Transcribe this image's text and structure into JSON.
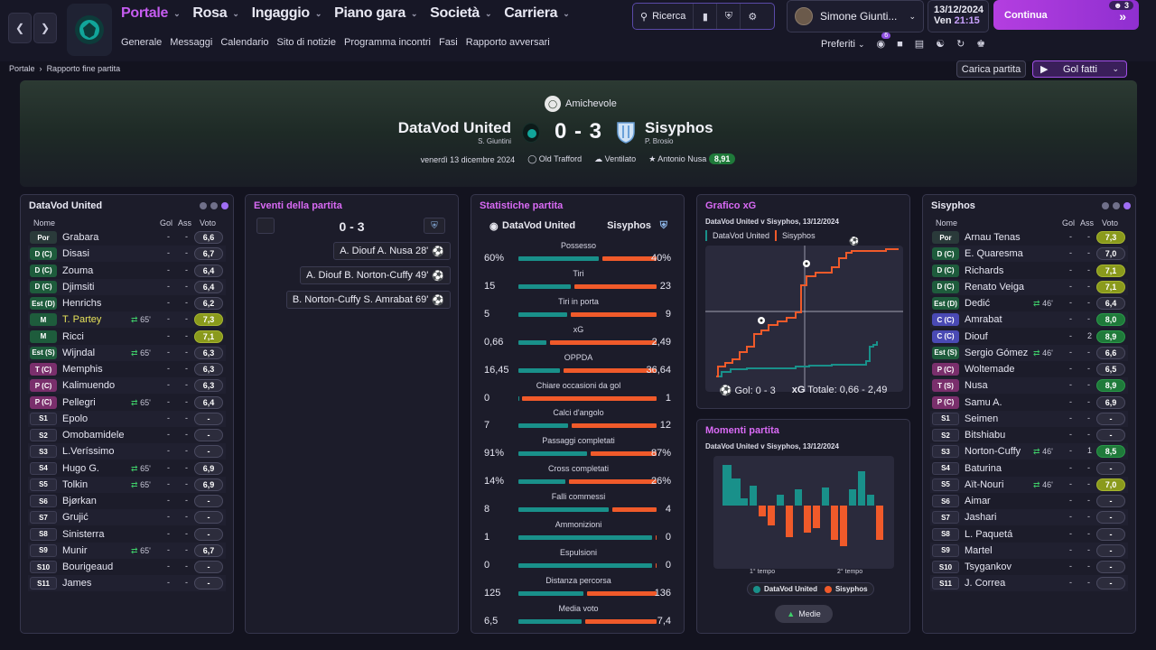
{
  "nav": {
    "main": [
      "Portale",
      "Rosa",
      "Ingaggio",
      "Piano gara",
      "Società",
      "Carriera"
    ],
    "sub": [
      "Generale",
      "Messaggi",
      "Calendario",
      "Sito di notizie",
      "Programma incontri",
      "Fasi",
      "Rapporto avversari"
    ]
  },
  "search": {
    "label": "Ricerca"
  },
  "user": {
    "name": "Simone Giunti..."
  },
  "date": {
    "date": "13/12/2024",
    "day": "Ven",
    "time": "21:15"
  },
  "continue": {
    "label": "Continua",
    "badge": "3"
  },
  "prefs": {
    "label": "Preferiti",
    "badge": "6"
  },
  "breadcrumb": {
    "root": "Portale",
    "current": "Rapporto fine partita"
  },
  "actions": {
    "load": "Carica partita",
    "goals": "Gol fatti"
  },
  "match": {
    "competition": "Amichevole",
    "home": "DataVod United",
    "home_manager": "S. Giuntini",
    "score": "0 - 3",
    "away": "Sisyphos",
    "away_manager": "P. Brosio",
    "date": "venerdì 13 dicembre 2024",
    "stadium": "Old Trafford",
    "weather": "Ventilato",
    "motm": "Antonio Nusa",
    "motm_rating": "8,91"
  },
  "home_panel": {
    "title": "DataVod United",
    "headers": {
      "name": "Nome",
      "goals": "Gol",
      "assists": "Ass",
      "rating": "Voto"
    },
    "players": [
      {
        "pos": "Por",
        "cls": "por",
        "name": "Grabara",
        "sub": "",
        "g": "-",
        "a": "-",
        "v": "6,6",
        "vc": ""
      },
      {
        "pos": "D (C)",
        "cls": "d",
        "name": "Disasi",
        "sub": "",
        "g": "-",
        "a": "-",
        "v": "6,7",
        "vc": ""
      },
      {
        "pos": "D (C)",
        "cls": "d",
        "name": "Zouma",
        "sub": "",
        "g": "-",
        "a": "-",
        "v": "6,4",
        "vc": ""
      },
      {
        "pos": "D (C)",
        "cls": "d",
        "name": "Djimsiti",
        "sub": "",
        "g": "-",
        "a": "-",
        "v": "6,4",
        "vc": ""
      },
      {
        "pos": "Est (D)",
        "cls": "est",
        "name": "Henrichs",
        "sub": "",
        "g": "-",
        "a": "-",
        "v": "6,2",
        "vc": ""
      },
      {
        "pos": "M",
        "cls": "m",
        "name": "T. Partey",
        "sub": "65'",
        "g": "-",
        "a": "-",
        "v": "7,3",
        "vc": "y",
        "hl": true
      },
      {
        "pos": "M",
        "cls": "m",
        "name": "Ricci",
        "sub": "",
        "g": "-",
        "a": "-",
        "v": "7,1",
        "vc": "y"
      },
      {
        "pos": "Est (S)",
        "cls": "est",
        "name": "Wijndal",
        "sub": "65'",
        "g": "-",
        "a": "-",
        "v": "6,3",
        "vc": ""
      },
      {
        "pos": "T (C)",
        "cls": "t",
        "name": "Memphis",
        "sub": "",
        "g": "-",
        "a": "-",
        "v": "6,3",
        "vc": ""
      },
      {
        "pos": "P (C)",
        "cls": "p",
        "name": "Kalimuendo",
        "sub": "",
        "g": "-",
        "a": "-",
        "v": "6,3",
        "vc": ""
      },
      {
        "pos": "P (C)",
        "cls": "p",
        "name": "Pellegri",
        "sub": "65'",
        "g": "-",
        "a": "-",
        "v": "6,4",
        "vc": ""
      },
      {
        "pos": "S1",
        "cls": "s",
        "name": "Epolo",
        "sub": "",
        "g": "-",
        "a": "-",
        "v": "-",
        "vc": ""
      },
      {
        "pos": "S2",
        "cls": "s",
        "name": "Omobamidele",
        "sub": "",
        "g": "-",
        "a": "-",
        "v": "-",
        "vc": ""
      },
      {
        "pos": "S3",
        "cls": "s",
        "name": "L.Veríssimo",
        "sub": "",
        "g": "-",
        "a": "-",
        "v": "-",
        "vc": ""
      },
      {
        "pos": "S4",
        "cls": "s",
        "name": "Hugo G.",
        "sub": "65'",
        "g": "-",
        "a": "-",
        "v": "6,9",
        "vc": ""
      },
      {
        "pos": "S5",
        "cls": "s",
        "name": "Tolkin",
        "sub": "65'",
        "g": "-",
        "a": "-",
        "v": "6,9",
        "vc": ""
      },
      {
        "pos": "S6",
        "cls": "s",
        "name": "Bjørkan",
        "sub": "",
        "g": "-",
        "a": "-",
        "v": "-",
        "vc": ""
      },
      {
        "pos": "S7",
        "cls": "s",
        "name": "Grujić",
        "sub": "",
        "g": "-",
        "a": "-",
        "v": "-",
        "vc": ""
      },
      {
        "pos": "S8",
        "cls": "s",
        "name": "Sinisterra",
        "sub": "",
        "g": "-",
        "a": "-",
        "v": "-",
        "vc": ""
      },
      {
        "pos": "S9",
        "cls": "s",
        "name": "Munir",
        "sub": "65'",
        "g": "-",
        "a": "-",
        "v": "6,7",
        "vc": ""
      },
      {
        "pos": "S10",
        "cls": "s",
        "name": "Bourigeaud",
        "sub": "",
        "g": "-",
        "a": "-",
        "v": "-",
        "vc": ""
      },
      {
        "pos": "S11",
        "cls": "s",
        "name": "James",
        "sub": "",
        "g": "-",
        "a": "-",
        "v": "-",
        "vc": ""
      }
    ]
  },
  "events": {
    "title": "Eventi della partita",
    "score": "0 - 3",
    "items": [
      {
        "text": "A. Diouf  A. Nusa 28'"
      },
      {
        "text": "A. Diouf  B. Norton-Cuffy 49'"
      },
      {
        "text": "B. Norton-Cuffy  S. Amrabat 69'"
      }
    ]
  },
  "stats": {
    "title": "Statistiche partita",
    "home": "DataVod United",
    "away": "Sisyphos",
    "rows": [
      {
        "label": "Possesso",
        "l": "60%",
        "r": "40%",
        "lw": 0.6,
        "rw": 0.4
      },
      {
        "label": "Tiri",
        "l": "15",
        "r": "23",
        "lw": 0.39,
        "rw": 0.61
      },
      {
        "label": "Tiri in porta",
        "l": "5",
        "r": "9",
        "lw": 0.36,
        "rw": 0.64
      },
      {
        "label": "xG",
        "l": "0,66",
        "r": "2,49",
        "lw": 0.21,
        "rw": 0.79
      },
      {
        "label": "OPPDA",
        "l": "16,45",
        "r": "36,64",
        "lw": 0.31,
        "rw": 0.69
      },
      {
        "label": "Chiare occasioni da gol",
        "l": "0",
        "r": "1",
        "lw": 0,
        "rw": 1
      },
      {
        "label": "Calci d'angolo",
        "l": "7",
        "r": "12",
        "lw": 0.37,
        "rw": 0.63
      },
      {
        "label": "Passaggi completati",
        "l": "91%",
        "r": "87%",
        "lw": 0.51,
        "rw": 0.49
      },
      {
        "label": "Cross completati",
        "l": "14%",
        "r": "26%",
        "lw": 0.35,
        "rw": 0.65
      },
      {
        "label": "Falli commessi",
        "l": "8",
        "r": "4",
        "lw": 0.67,
        "rw": 0.33
      },
      {
        "label": "Ammonizioni",
        "l": "1",
        "r": "0",
        "lw": 0.99,
        "rw": 0.01
      },
      {
        "label": "Espulsioni",
        "l": "0",
        "r": "0",
        "lw": 0.99,
        "rw": 0.01
      },
      {
        "label": "Distanza percorsa",
        "l": "125",
        "r": "136",
        "lw": 0.48,
        "rw": 0.52
      },
      {
        "label": "Media voto",
        "l": "6,5",
        "r": "7,4",
        "lw": 0.47,
        "rw": 0.53
      }
    ]
  },
  "xg": {
    "title": "Grafico xG",
    "subtitle": "DataVod United v Sisyphos, 13/12/2024",
    "home": "DataVod United",
    "away": "Sisyphos",
    "footer_goals": "Gol: 0 - 3",
    "footer_xg_label": "xG",
    "footer_xg": "Totale: 0,66 - 2,49"
  },
  "moments": {
    "title": "Momenti partita",
    "subtitle": "DataVod United v Sisyphos, 13/12/2024",
    "half1": "1° tempo",
    "half2": "2° tempo",
    "home": "DataVod United",
    "away": "Sisyphos",
    "button": "Medie"
  },
  "away_panel": {
    "title": "Sisyphos",
    "headers": {
      "name": "Nome",
      "goals": "Gol",
      "assists": "Ass",
      "rating": "Voto"
    },
    "players": [
      {
        "pos": "Por",
        "cls": "por",
        "name": "Arnau Tenas",
        "sub": "",
        "g": "-",
        "a": "-",
        "v": "7,3",
        "vc": "y"
      },
      {
        "pos": "D (C)",
        "cls": "d",
        "name": "E. Quaresma",
        "sub": "",
        "g": "-",
        "a": "-",
        "v": "7,0",
        "vc": ""
      },
      {
        "pos": "D (C)",
        "cls": "d",
        "name": "Richards",
        "sub": "",
        "g": "-",
        "a": "-",
        "v": "7,1",
        "vc": "y"
      },
      {
        "pos": "D (C)",
        "cls": "d",
        "name": "Renato Veiga",
        "sub": "",
        "g": "-",
        "a": "-",
        "v": "7,1",
        "vc": "y"
      },
      {
        "pos": "Est (D)",
        "cls": "est",
        "name": "Dedić",
        "sub": "46'",
        "g": "-",
        "a": "-",
        "v": "6,4",
        "vc": ""
      },
      {
        "pos": "C (C)",
        "cls": "c",
        "name": "Amrabat",
        "sub": "",
        "g": "-",
        "a": "-",
        "v": "8,0",
        "vc": "gr"
      },
      {
        "pos": "C (C)",
        "cls": "c",
        "name": "Diouf",
        "sub": "",
        "g": "-",
        "a": "2",
        "v": "8,9",
        "vc": "gr"
      },
      {
        "pos": "Est (S)",
        "cls": "est",
        "name": "Sergio Gómez",
        "sub": "46'",
        "g": "-",
        "a": "-",
        "v": "6,6",
        "vc": ""
      },
      {
        "pos": "P (C)",
        "cls": "p",
        "name": "Woltemade",
        "sub": "",
        "g": "-",
        "a": "-",
        "v": "6,5",
        "vc": ""
      },
      {
        "pos": "T (S)",
        "cls": "t",
        "name": "Nusa",
        "sub": "",
        "g": "-",
        "a": "-",
        "v": "8,9",
        "vc": "gr"
      },
      {
        "pos": "P (C)",
        "cls": "p",
        "name": "Samu A.",
        "sub": "",
        "g": "-",
        "a": "-",
        "v": "6,9",
        "vc": ""
      },
      {
        "pos": "S1",
        "cls": "s",
        "name": "Seimen",
        "sub": "",
        "g": "-",
        "a": "-",
        "v": "-",
        "vc": ""
      },
      {
        "pos": "S2",
        "cls": "s",
        "name": "Bitshiabu",
        "sub": "",
        "g": "-",
        "a": "-",
        "v": "-",
        "vc": ""
      },
      {
        "pos": "S3",
        "cls": "s",
        "name": "Norton-Cuffy",
        "sub": "46'",
        "g": "-",
        "a": "1",
        "v": "8,5",
        "vc": "gr"
      },
      {
        "pos": "S4",
        "cls": "s",
        "name": "Baturina",
        "sub": "",
        "g": "-",
        "a": "-",
        "v": "-",
        "vc": ""
      },
      {
        "pos": "S5",
        "cls": "s",
        "name": "Aït-Nouri",
        "sub": "46'",
        "g": "-",
        "a": "-",
        "v": "7,0",
        "vc": "y"
      },
      {
        "pos": "S6",
        "cls": "s",
        "name": "Aimar",
        "sub": "",
        "g": "-",
        "a": "-",
        "v": "-",
        "vc": ""
      },
      {
        "pos": "S7",
        "cls": "s",
        "name": "Jashari",
        "sub": "",
        "g": "-",
        "a": "-",
        "v": "-",
        "vc": ""
      },
      {
        "pos": "S8",
        "cls": "s",
        "name": "L. Paquetá",
        "sub": "",
        "g": "-",
        "a": "-",
        "v": "-",
        "vc": ""
      },
      {
        "pos": "S9",
        "cls": "s",
        "name": "Martel",
        "sub": "",
        "g": "-",
        "a": "-",
        "v": "-",
        "vc": ""
      },
      {
        "pos": "S10",
        "cls": "s",
        "name": "Tsygankov",
        "sub": "",
        "g": "-",
        "a": "-",
        "v": "-",
        "vc": ""
      },
      {
        "pos": "S11",
        "cls": "s",
        "name": "J. Correa",
        "sub": "",
        "g": "-",
        "a": "-",
        "v": "-",
        "vc": ""
      }
    ]
  },
  "colors": {
    "home": "#19908a",
    "away": "#f05a2a",
    "accent": "#c55cf0"
  }
}
